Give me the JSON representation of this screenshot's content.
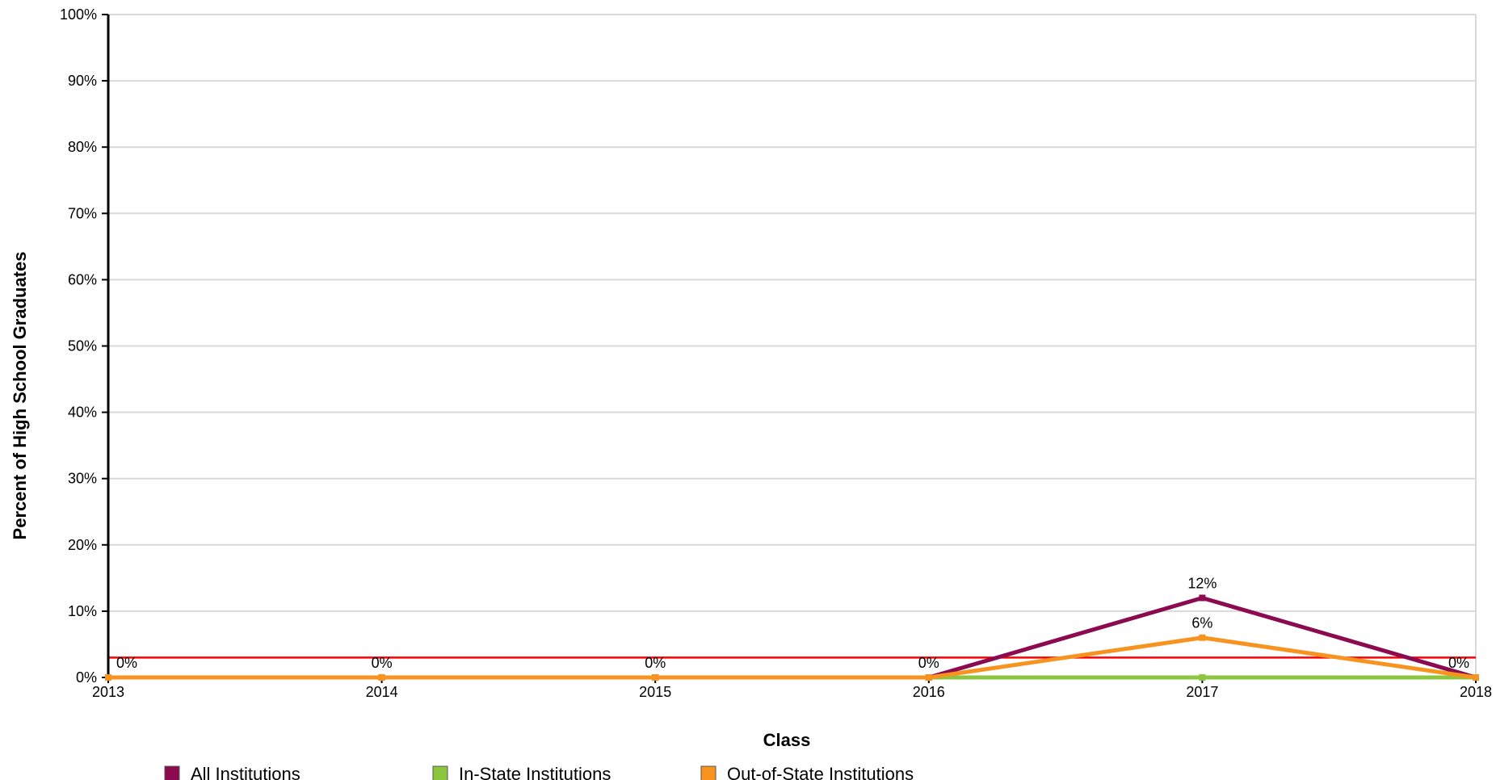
{
  "chart_data": {
    "type": "line",
    "title": "",
    "xlabel": "Class",
    "ylabel": "Percent of High School Graduates",
    "x": [
      "2013",
      "2014",
      "2015",
      "2016",
      "2017",
      "2018"
    ],
    "yticks": [
      "0%",
      "10%",
      "20%",
      "30%",
      "40%",
      "50%",
      "60%",
      "70%",
      "80%",
      "90%",
      "100%"
    ],
    "ylim": [
      0,
      100
    ],
    "grid": true,
    "legend_position": "bottom",
    "series": [
      {
        "name": "All Institutions",
        "color": "#8B0A50",
        "values": [
          0,
          0,
          0,
          0,
          12,
          0
        ],
        "labels": [
          "0%",
          "0%",
          "0%",
          "0%",
          "12%",
          "0%"
        ]
      },
      {
        "name": "In-State Institutions",
        "color": "#8CC63F",
        "values": [
          0,
          0,
          0,
          0,
          0,
          0
        ],
        "labels": [
          "",
          "",
          "",
          "",
          "",
          ""
        ]
      },
      {
        "name": "Out-of-State Institutions",
        "color": "#F7931E",
        "values": [
          0,
          0,
          0,
          0,
          6,
          0
        ],
        "labels": [
          "",
          "",
          "",
          "",
          "6%",
          ""
        ]
      }
    ],
    "reference_line": {
      "value": 3,
      "color": "#FF0000"
    }
  }
}
